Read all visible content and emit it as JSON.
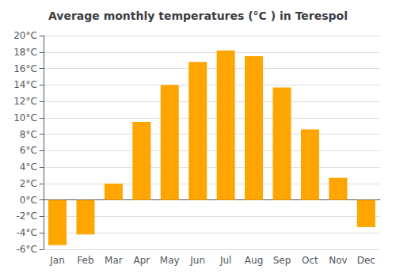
{
  "chart_data": {
    "type": "bar",
    "title": "Average monthly temperatures (°C ) in Terespol",
    "categories": [
      "Jan",
      "Feb",
      "Mar",
      "Apr",
      "May",
      "Jun",
      "Jul",
      "Aug",
      "Sep",
      "Oct",
      "Nov",
      "Dec"
    ],
    "values": [
      -5.5,
      -4.2,
      2.0,
      9.5,
      14.0,
      16.8,
      18.2,
      17.5,
      13.7,
      8.6,
      2.7,
      -3.3
    ],
    "color": "#FFA500",
    "ylim": [
      -6,
      20
    ],
    "yticks": [
      {
        "value": -6,
        "label": "-6°C"
      },
      {
        "value": -4,
        "label": "-4°C"
      },
      {
        "value": -2,
        "label": "-2°C"
      },
      {
        "value": 0,
        "label": "0°C"
      },
      {
        "value": 2,
        "label": "2°C"
      },
      {
        "value": 4,
        "label": "4°C"
      },
      {
        "value": 6,
        "label": "6°C"
      },
      {
        "value": 8,
        "label": "8°C"
      },
      {
        "value": 10,
        "label": "10°C"
      },
      {
        "value": 12,
        "label": "12°C"
      },
      {
        "value": 14,
        "label": "14°C"
      },
      {
        "value": 16,
        "label": "16°C"
      },
      {
        "value": 18,
        "label": "18°C"
      },
      {
        "value": 20,
        "label": "20°C"
      }
    ],
    "grid": true
  }
}
